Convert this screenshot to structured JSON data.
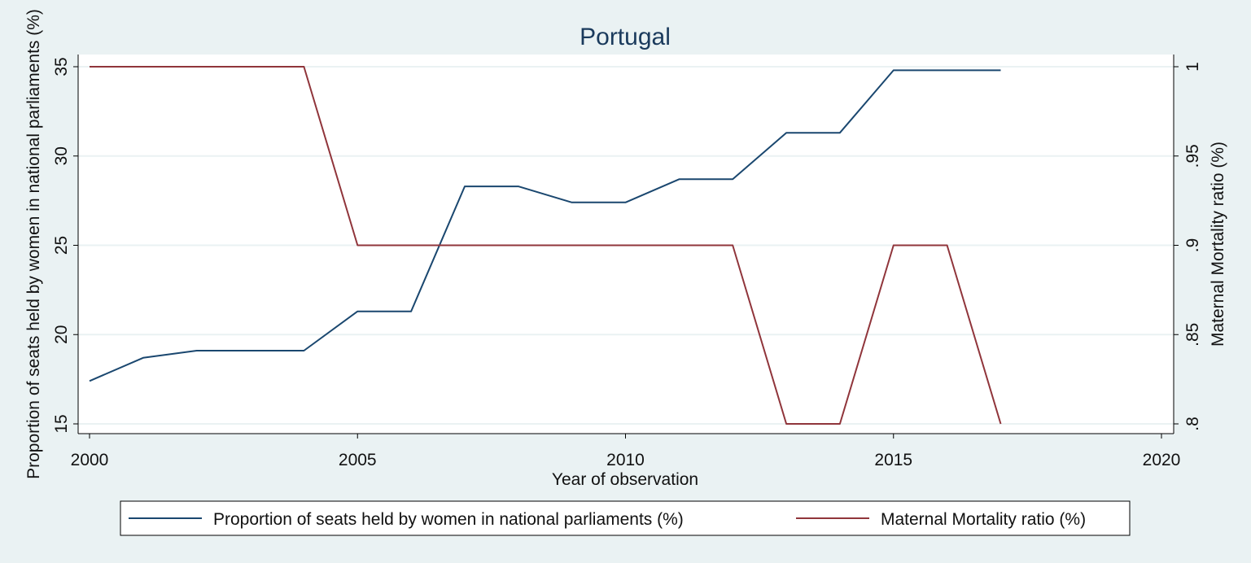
{
  "chart_data": {
    "type": "line",
    "title": "Portugal",
    "xlabel": "Year of observation",
    "ylabel_left": "Proportion of seats held by women in national parliaments (%)",
    "ylabel_right": "Maternal Mortality ratio (%)",
    "xlim": [
      2000,
      2020
    ],
    "ylim_left": [
      15,
      35
    ],
    "ylim_right": [
      0.8,
      1.0
    ],
    "x_ticks": [
      {
        "value": 2000,
        "label": "2000"
      },
      {
        "value": 2005,
        "label": "2005"
      },
      {
        "value": 2010,
        "label": "2010"
      },
      {
        "value": 2015,
        "label": "2015"
      },
      {
        "value": 2020,
        "label": "2020"
      }
    ],
    "y_ticks_left": [
      {
        "value": 15,
        "label": "15"
      },
      {
        "value": 20,
        "label": "20"
      },
      {
        "value": 25,
        "label": "25"
      },
      {
        "value": 30,
        "label": "30"
      },
      {
        "value": 35,
        "label": "35"
      }
    ],
    "y_ticks_right": [
      {
        "value": 0.8,
        "label": ".8"
      },
      {
        "value": 0.85,
        "label": ".85"
      },
      {
        "value": 0.9,
        "label": ".9"
      },
      {
        "value": 0.95,
        "label": ".95"
      },
      {
        "value": 1.0,
        "label": "1"
      }
    ],
    "grid": true,
    "legend_position": "bottom",
    "series": [
      {
        "name": "Proportion of seats held by women in national parliaments (%)",
        "axis": "left",
        "color": "#1a476f",
        "x": [
          2000,
          2001,
          2002,
          2003,
          2004,
          2005,
          2006,
          2007,
          2008,
          2009,
          2010,
          2011,
          2012,
          2013,
          2014,
          2015,
          2016,
          2017
        ],
        "y": [
          17.4,
          18.7,
          19.1,
          19.1,
          19.1,
          21.3,
          21.3,
          28.3,
          28.3,
          27.4,
          27.4,
          28.7,
          28.7,
          31.3,
          31.3,
          34.8,
          34.8,
          34.8
        ]
      },
      {
        "name": "Maternal Mortality ratio (%)",
        "axis": "right",
        "color": "#90353b",
        "x": [
          2000,
          2001,
          2002,
          2003,
          2004,
          2005,
          2006,
          2007,
          2008,
          2009,
          2010,
          2011,
          2012,
          2013,
          2014,
          2015,
          2016,
          2017
        ],
        "y": [
          1.0,
          1.0,
          1.0,
          1.0,
          1.0,
          0.9,
          0.9,
          0.9,
          0.9,
          0.9,
          0.9,
          0.9,
          0.9,
          0.8,
          0.8,
          0.9,
          0.9,
          0.8
        ]
      }
    ]
  }
}
